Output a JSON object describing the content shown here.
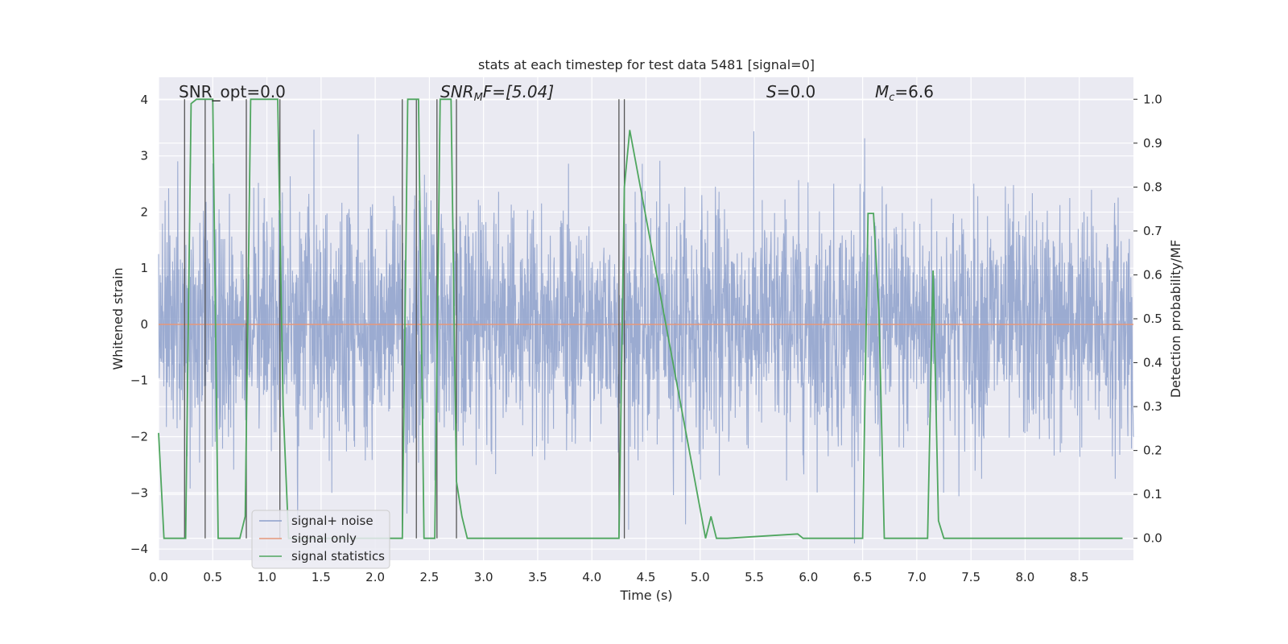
{
  "chart_data": {
    "type": "line",
    "title": "stats at each timestep for test data 5481 [signal=0]",
    "xlabel": "Time (s)",
    "ylabel_left": "Whitened strain",
    "ylabel_right": "Detection probability/MF",
    "xlim": [
      0,
      9.0
    ],
    "ylim_left": [
      -4.2,
      4.4
    ],
    "ylim_right": [
      -0.05,
      1.05
    ],
    "x_ticks": [
      "0.0",
      "0.5",
      "1.0",
      "1.5",
      "2.0",
      "2.5",
      "3.0",
      "3.5",
      "4.0",
      "4.5",
      "5.0",
      "5.5",
      "6.0",
      "6.5",
      "7.0",
      "7.5",
      "8.0",
      "8.5"
    ],
    "y_ticks_left": [
      "4",
      "3",
      "2",
      "1",
      "0",
      "−1",
      "−2",
      "−3",
      "−4"
    ],
    "y_ticks_right": [
      "1.0",
      "0.9",
      "0.8",
      "0.7",
      "0.6",
      "0.5",
      "0.4",
      "0.3",
      "0.2",
      "0.1",
      "0.0"
    ],
    "grid": true,
    "legend_position": "lower-left",
    "annotations": {
      "snr_opt": "SNR_opt=0.0",
      "snr_mf_main": "SNR",
      "snr_mf_sub": "M",
      "snr_mf_rest": "F=[5.04]",
      "s_main": "S",
      "s_rest": "=0.0",
      "mc_main": "M",
      "mc_sub": "c",
      "mc_rest": "=6.6"
    },
    "series": [
      {
        "name": "signal+ noise",
        "color": "#8da0cb",
        "axis": "left",
        "description_values": "whitened noise strain, amplitude roughly within ±3.5"
      },
      {
        "name": "signal only",
        "color": "#e5977a",
        "axis": "left",
        "values_constant": 0.0
      },
      {
        "name": "signal statistics",
        "color": "#4fa65f",
        "axis": "right",
        "x": [
          0.0,
          0.05,
          0.1,
          0.2,
          0.25,
          0.3,
          0.35,
          0.4,
          0.45,
          0.5,
          0.55,
          0.6,
          0.7,
          0.75,
          0.8,
          0.85,
          0.9,
          1.0,
          1.1,
          1.15,
          1.2,
          1.25,
          2.15,
          2.2,
          2.25,
          2.3,
          2.35,
          2.4,
          2.45,
          2.5,
          2.55,
          2.6,
          2.65,
          2.7,
          2.75,
          2.8,
          2.85,
          2.9,
          3.0,
          4.2,
          4.25,
          4.3,
          4.35,
          5.05,
          5.1,
          5.15,
          5.2,
          5.25,
          5.9,
          5.95,
          6.0,
          6.5,
          6.55,
          6.6,
          6.65,
          6.7,
          6.75,
          7.1,
          7.15,
          7.2,
          7.25,
          7.3,
          8.9
        ],
        "values": [
          0.24,
          0.0,
          0.0,
          0.0,
          0.0,
          0.99,
          1.0,
          1.0,
          1.0,
          1.0,
          0.0,
          0.0,
          0.0,
          0.0,
          0.05,
          1.0,
          1.0,
          1.0,
          1.0,
          0.3,
          0.0,
          0.0,
          0.0,
          0.0,
          0.0,
          1.0,
          1.0,
          1.0,
          0.0,
          0.0,
          0.0,
          1.0,
          1.0,
          1.0,
          0.13,
          0.05,
          0.0,
          0.0,
          0.0,
          0.0,
          0.0,
          0.8,
          0.93,
          0.0,
          0.05,
          0.0,
          0.0,
          0.0,
          0.01,
          0.0,
          0.0,
          0.0,
          0.74,
          0.74,
          0.52,
          0.0,
          0.0,
          0.0,
          0.61,
          0.04,
          0.0,
          0.0,
          0.0
        ]
      }
    ],
    "vertical_markers_x": [
      0.24,
      0.43,
      0.81,
      1.12,
      2.25,
      2.38,
      2.57,
      2.75,
      4.25,
      4.3
    ]
  }
}
